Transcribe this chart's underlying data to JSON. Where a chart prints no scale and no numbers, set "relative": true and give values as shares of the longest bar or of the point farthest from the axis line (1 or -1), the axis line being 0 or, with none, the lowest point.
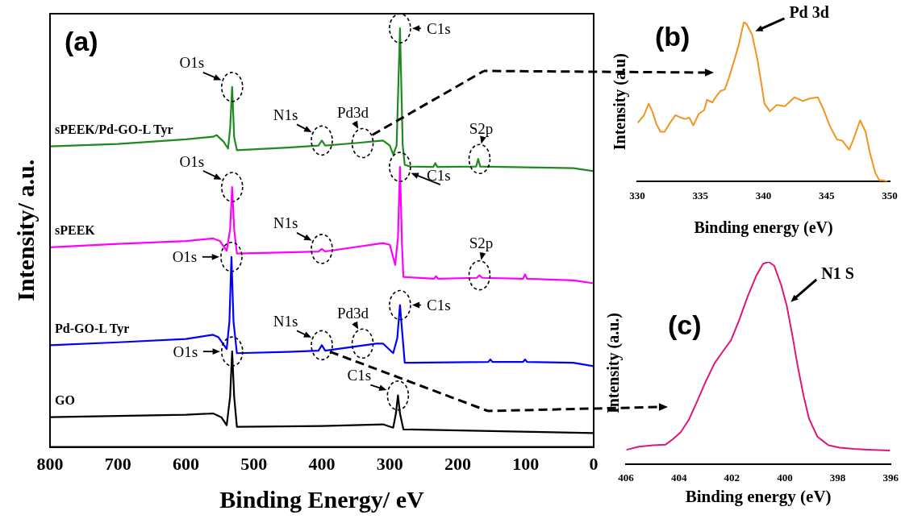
{
  "chart_data": [
    {
      "type": "line",
      "title": "(a)",
      "xlabel": "Binding Energy/ eV",
      "ylabel": "Intensity/ a.u.",
      "relative": true,
      "xlim": [
        800,
        0
      ],
      "xticks": [
        800,
        700,
        600,
        500,
        400,
        300,
        200,
        100,
        0
      ],
      "tick_labels": "x",
      "legend": false,
      "series": [
        {
          "name": "sPEEK/Pd-GO-L Tyr",
          "color": "#1f8a1f",
          "x": [
            800,
            700,
            600,
            560,
            555,
            545,
            538,
            535,
            532,
            529,
            525,
            450,
            405,
            400,
            395,
            350,
            310,
            300,
            295,
            290,
            285,
            281,
            278,
            270,
            236,
            233,
            230,
            173,
            170,
            167,
            100,
            30,
            0
          ],
          "values": [
            0.718,
            0.724,
            0.735,
            0.741,
            0.745,
            0.73,
            0.713,
            0.76,
            0.86,
            0.74,
            0.709,
            0.715,
            0.72,
            0.732,
            0.72,
            0.726,
            0.732,
            0.72,
            0.699,
            0.72,
            1,
            0.72,
            0.674,
            0.67,
            0.669,
            0.678,
            0.669,
            0.67,
            0.688,
            0.67,
            0.668,
            0.666,
            0.659
          ]
        },
        {
          "name": "sPEEK",
          "color": "#ff00ff",
          "x": [
            800,
            700,
            600,
            560,
            550,
            540,
            535,
            532,
            529,
            525,
            450,
            405,
            400,
            395,
            310,
            300,
            292,
            288,
            285,
            282,
            280,
            235,
            232,
            229,
            172,
            168,
            164,
            104,
            101,
            98,
            30,
            0
          ],
          "values": [
            0.477,
            0.485,
            0.492,
            0.498,
            0.492,
            0.469,
            0.52,
            0.621,
            0.52,
            0.462,
            0.465,
            0.467,
            0.473,
            0.467,
            0.487,
            0.483,
            0.435,
            0.5,
            0.669,
            0.48,
            0.406,
            0.402,
            0.408,
            0.402,
            0.404,
            0.41,
            0.404,
            0.402,
            0.412,
            0.402,
            0.398,
            0.391
          ]
        },
        {
          "name": "Pd-GO-L Tyr",
          "color": "#0000ff",
          "x": [
            800,
            700,
            600,
            560,
            552,
            540,
            536,
            533,
            530,
            525,
            450,
            405,
            400,
            395,
            320,
            310,
            295,
            289,
            285,
            281,
            278,
            155,
            152,
            149,
            104,
            101,
            98,
            30,
            0
          ],
          "values": [
            0.243,
            0.25,
            0.258,
            0.268,
            0.262,
            0.234,
            0.3,
            0.454,
            0.3,
            0.224,
            0.227,
            0.23,
            0.243,
            0.23,
            0.247,
            0.247,
            0.224,
            0.26,
            0.339,
            0.26,
            0.201,
            0.203,
            0.209,
            0.203,
            0.203,
            0.209,
            0.203,
            0.201,
            0.193
          ]
        },
        {
          "name": "GO",
          "color": "#000000",
          "x": [
            800,
            700,
            600,
            560,
            548,
            540,
            535,
            532,
            529,
            525,
            400,
            310,
            295,
            291,
            288,
            285,
            280,
            0
          ],
          "values": [
            0.071,
            0.074,
            0.077,
            0.08,
            0.071,
            0.052,
            0.12,
            0.228,
            0.12,
            0.048,
            0.05,
            0.054,
            0.046,
            0.08,
            0.123,
            0.08,
            0.042,
            0.033
          ]
        }
      ],
      "annotations": [
        {
          "text": "O1s",
          "x": 532,
          "y": 0.86
        },
        {
          "text": "C1s",
          "x": 285,
          "y": 1
        },
        {
          "text": "N1s",
          "x": 400,
          "y": 0.732
        },
        {
          "text": "Pd3d",
          "x": 340,
          "y": 0.726
        },
        {
          "text": "S2p",
          "x": 168,
          "y": 0.688
        },
        {
          "text": "O1s",
          "x": 532,
          "y": 0.621
        },
        {
          "text": "C1s",
          "x": 285,
          "y": 0.669
        },
        {
          "text": "N1s",
          "x": 400,
          "y": 0.473
        },
        {
          "text": "S2p",
          "x": 168,
          "y": 0.41
        },
        {
          "text": "O1s",
          "x": 533,
          "y": 0.454
        },
        {
          "text": "C1s",
          "x": 285,
          "y": 0.339
        },
        {
          "text": "N1s",
          "x": 400,
          "y": 0.243
        },
        {
          "text": "Pd3d",
          "x": 340,
          "y": 0.247
        },
        {
          "text": "O1s",
          "x": 532,
          "y": 0.228
        },
        {
          "text": "C1s",
          "x": 288,
          "y": 0.123
        }
      ]
    },
    {
      "type": "line",
      "title": "(b)",
      "xlabel": "Binding energy (eV)",
      "ylabel": "Intensity (a.u)",
      "relative": true,
      "xlim": [
        330,
        350
      ],
      "xticks": [
        330,
        335,
        340,
        345,
        350
      ],
      "tick_labels": "x",
      "legend": false,
      "series": [
        {
          "color": "#f39420",
          "x": [
            330.04,
            330.22,
            330.54,
            330.91,
            331.19,
            331.52,
            331.84,
            332.17,
            332.6,
            333.03,
            333.47,
            333.79,
            334.12,
            334.44,
            334.88,
            335.31,
            335.53,
            335.96,
            336.28,
            336.61,
            336.93,
            337.26,
            337.69,
            338.02,
            338.45,
            338.67,
            339.1,
            339.53,
            339.86,
            340.08,
            340.51,
            341.05,
            341.7,
            342.46,
            343.11,
            343.65,
            344.3,
            344.73,
            345.28,
            345.82,
            346.25,
            346.79,
            347.12,
            347.66,
            348.09,
            348.42,
            348.85,
            349.18,
            349.5,
            349.83
          ],
          "values": [
            0.368,
            0.384,
            0.416,
            0.488,
            0.44,
            0.36,
            0.312,
            0.312,
            0.368,
            0.416,
            0.4,
            0.392,
            0.4,
            0.352,
            0.424,
            0.448,
            0.512,
            0.496,
            0.536,
            0.568,
            0.576,
            0.648,
            0.76,
            0.848,
            1,
            0.984,
            0.92,
            0.76,
            0.6,
            0.488,
            0.44,
            0.48,
            0.472,
            0.528,
            0.504,
            0.52,
            0.528,
            0.456,
            0.344,
            0.264,
            0.256,
            0.2,
            0.264,
            0.384,
            0.312,
            0.184,
            0.056,
            0.008,
            0.008,
            0
          ]
        }
      ],
      "annotations": [
        {
          "text": "Pd 3d",
          "x": 339.1,
          "y": 0.92
        }
      ]
    },
    {
      "type": "line",
      "title": "(c)",
      "xlabel": "Binding energy (eV)",
      "ylabel": "Intensity (a.u.)",
      "relative": true,
      "xlim": [
        406,
        396
      ],
      "xticks": [
        406,
        404,
        402,
        400,
        398,
        396
      ],
      "tick_labels": "x",
      "legend": false,
      "series": [
        {
          "color": "#e0157a",
          "x": [
            405.98,
            405.51,
            404.98,
            404.51,
            404.24,
            403.93,
            403.61,
            403.29,
            402.98,
            402.66,
            402.35,
            402.03,
            401.72,
            401.4,
            401.08,
            400.82,
            400.61,
            400.4,
            400.14,
            399.93,
            399.72,
            399.51,
            399.29,
            399.08,
            398.77,
            398.35,
            397.92,
            397.4,
            396.87,
            396.03
          ],
          "values": [
            0.072,
            0.087,
            0.094,
            0.097,
            0.123,
            0.159,
            0.224,
            0.318,
            0.411,
            0.498,
            0.556,
            0.613,
            0.714,
            0.83,
            0.931,
            0.991,
            1,
            0.981,
            0.887,
            0.786,
            0.641,
            0.483,
            0.338,
            0.224,
            0.137,
            0.094,
            0.082,
            0.076,
            0.072,
            0.068
          ]
        }
      ],
      "annotations": [
        {
          "text": "N1 S",
          "x": 399.9,
          "y": 0.786
        }
      ]
    }
  ]
}
